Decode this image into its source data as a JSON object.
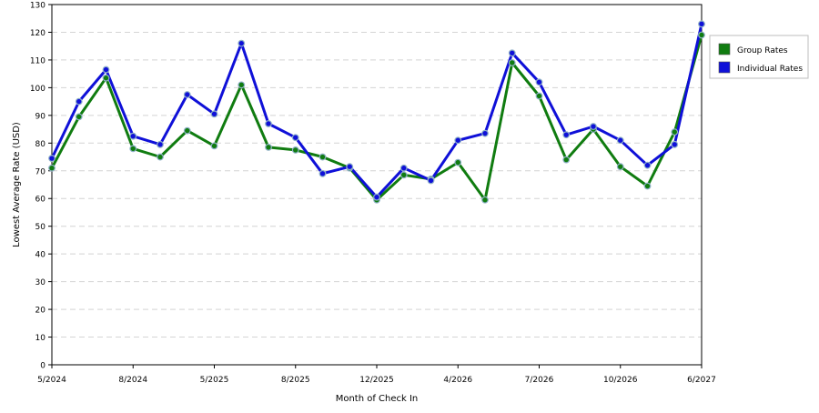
{
  "chart_data": {
    "type": "line",
    "title": "",
    "xlabel": "Month of Check In",
    "ylabel": "Lowest Average Rate (USD)",
    "ylim": [
      0,
      130
    ],
    "y_ticks": [
      0,
      10,
      20,
      30,
      40,
      50,
      60,
      70,
      80,
      90,
      100,
      110,
      120,
      130
    ],
    "x_tick_labels": [
      "5/2024",
      "8/2024",
      "5/2025",
      "8/2025",
      "12/2025",
      "4/2026",
      "7/2026",
      "10/2026",
      "6/2027"
    ],
    "grid": true,
    "legend_position": "right",
    "series": [
      {
        "name": "Group Rates",
        "color": "#107c10",
        "values": [
          71,
          89.5,
          103.5,
          78,
          75,
          84.5,
          79,
          101,
          78.5,
          77.5,
          75,
          71,
          59.5,
          68.5,
          67,
          73,
          59.5,
          109,
          97,
          74,
          85,
          71.5,
          64.5,
          84,
          119
        ]
      },
      {
        "name": "Individual Rates",
        "color": "#0f10d8",
        "values": [
          74.5,
          95,
          106.5,
          82.5,
          79.5,
          97.5,
          90.5,
          116,
          87,
          82,
          69,
          71.5,
          60.5,
          71,
          66.5,
          81,
          83.5,
          112.5,
          102,
          83,
          86,
          81,
          72,
          79.5,
          123
        ]
      }
    ]
  }
}
